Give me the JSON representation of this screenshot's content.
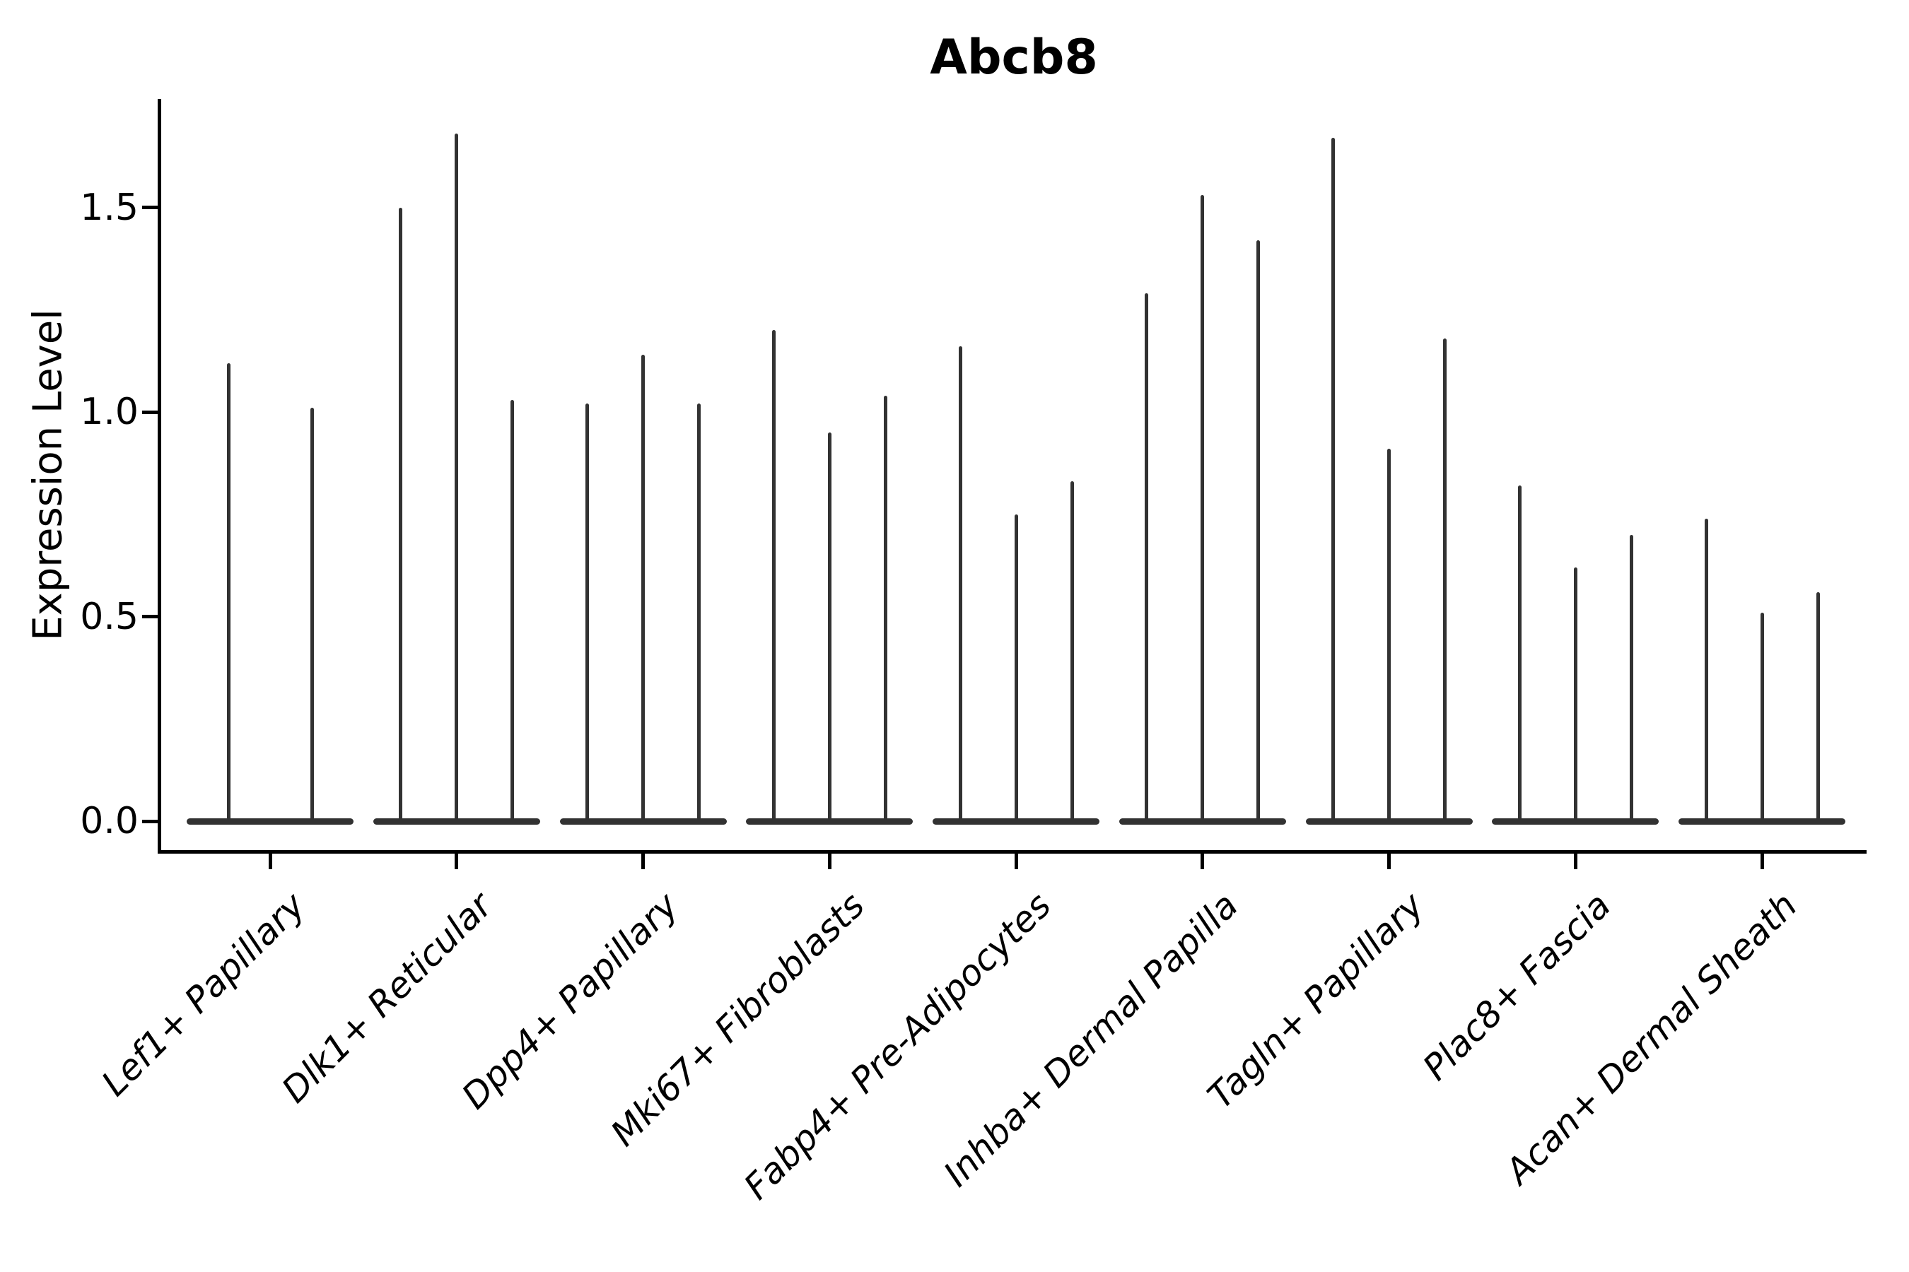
{
  "title": "Abcb8",
  "axes": {
    "ylabel": "Expression Level",
    "ytick_labels": [
      "0.0",
      "0.5",
      "1.0",
      "1.5"
    ]
  },
  "chart_data": {
    "type": "violin",
    "title": "Abcb8",
    "xlabel": "",
    "ylabel": "Expression Level",
    "ylim": [
      -0.07,
      1.77
    ],
    "yticks": [
      0.0,
      0.5,
      1.0,
      1.5
    ],
    "ytick_labels": [
      "0.0",
      "0.5",
      "1.0",
      "1.5"
    ],
    "grid": false,
    "legend_position": "none",
    "violin_color": "#323232",
    "axis_color": "#000000",
    "style_note": "very thin spike-like violins with flat bases at zero; first category has 2 violins, all others 3",
    "categories": [
      "Lef1+ Papillary",
      "Dlk1+ Reticular",
      "Dpp4+ Papillary",
      "Mki67+ Fibroblasts",
      "Fabp4+ Pre-Adipocytes",
      "Inhba+ Dermal Papilla",
      "Tagln+ Papillary",
      "Plac8+ Fascia",
      "Acan+ Dermal Sheath"
    ],
    "groups": [
      {
        "label": "Lef1+ Papillary",
        "violin_peaks": [
          1.12,
          1.01
        ]
      },
      {
        "label": "Dlk1+ Reticular",
        "violin_peaks": [
          1.5,
          1.68,
          1.03
        ]
      },
      {
        "label": "Dpp4+ Papillary",
        "violin_peaks": [
          1.02,
          1.14,
          1.02
        ]
      },
      {
        "label": "Mki67+ Fibroblasts",
        "violin_peaks": [
          1.2,
          0.95,
          1.04
        ]
      },
      {
        "label": "Fabp4+ Pre-Adipocytes",
        "violin_peaks": [
          1.16,
          0.75,
          0.83
        ]
      },
      {
        "label": "Inhba+ Dermal Papilla",
        "violin_peaks": [
          1.29,
          1.53,
          1.42
        ]
      },
      {
        "label": "Tagln+ Papillary",
        "violin_peaks": [
          1.67,
          0.91,
          1.18
        ]
      },
      {
        "label": "Plac8+ Fascia",
        "violin_peaks": [
          0.82,
          0.62,
          0.7
        ]
      },
      {
        "label": "Acan+ Dermal Sheath",
        "violin_peaks": [
          0.74,
          0.51,
          0.56
        ]
      }
    ]
  }
}
